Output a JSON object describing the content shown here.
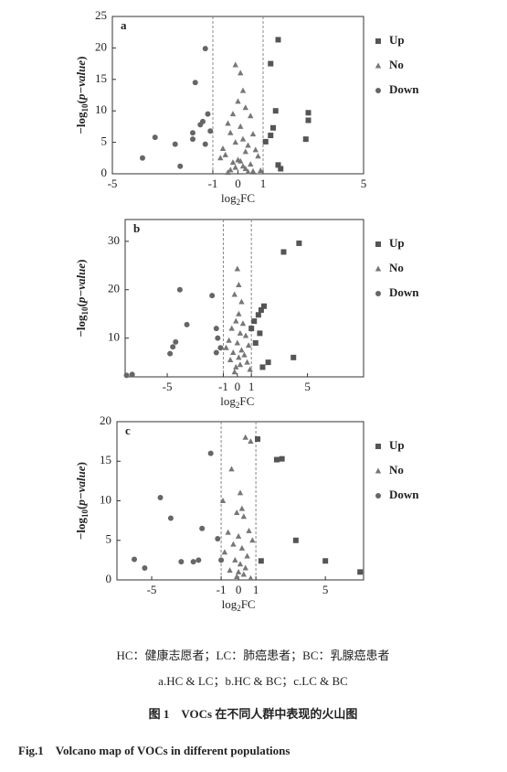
{
  "chart_data": [
    {
      "type": "scatter",
      "panel_label": "a",
      "xlabel": [
        "log",
        "2",
        "FC"
      ],
      "ylabel": [
        "−log",
        "10",
        "(",
        "p−value",
        ")"
      ],
      "xlim": [
        -5,
        5
      ],
      "ylim": [
        0,
        25
      ],
      "xticks": [
        -5,
        -1,
        0,
        1,
        5
      ],
      "yticks": [
        0,
        5,
        10,
        15,
        20,
        25
      ],
      "vlines": [
        -1,
        1
      ],
      "series": [
        {
          "name": "Up",
          "marker": "square",
          "color": "#555555",
          "x": [
            1.6,
            1.3,
            1.5,
            1.4,
            1.3,
            1.1,
            2.8,
            2.8,
            2.7,
            1.6,
            1.7
          ],
          "y": [
            21.3,
            17.5,
            10,
            7.3,
            6.1,
            5.1,
            9.7,
            8.5,
            5.5,
            1.4,
            0.8
          ]
        },
        {
          "name": "No",
          "marker": "triangle",
          "color": "#777777",
          "x": [
            -0.1,
            0.1,
            0.2,
            0,
            0.3,
            -0.2,
            0.5,
            -0.4,
            0.1,
            -0.3,
            0.6,
            0.2,
            -0.1,
            0.4,
            -0.6,
            0.7,
            0.3,
            -0.5,
            0.8,
            -0.7,
            0,
            0.1,
            -0.2,
            0.5,
            0.2,
            -0.1,
            0.3,
            -0.3,
            0.9,
            0.6,
            0.4,
            -0.4
          ],
          "y": [
            17.3,
            16,
            13.2,
            11.5,
            10.5,
            9.5,
            9.2,
            8,
            7.5,
            6.5,
            6.3,
            5.5,
            5,
            4.5,
            4,
            3.8,
            3.5,
            3,
            2.8,
            2.5,
            2.2,
            2,
            1.8,
            1.5,
            1.2,
            1,
            0.8,
            0.6,
            0.5,
            0.4,
            0.3,
            0.2
          ]
        },
        {
          "name": "Down",
          "marker": "circle",
          "color": "#666666",
          "x": [
            -1.3,
            -1.7,
            -1.2,
            -1.4,
            -1.5,
            -1.1,
            -3.3,
            -2.5,
            -3.8,
            -2.3,
            -1.8,
            -1.8,
            -1.3
          ],
          "y": [
            19.9,
            14.5,
            9.5,
            8.3,
            7.8,
            6.8,
            5.8,
            4.7,
            2.5,
            1.2,
            6.5,
            5.5,
            4.7
          ]
        }
      ]
    },
    {
      "type": "scatter",
      "panel_label": "b",
      "xlabel": [
        "log",
        "2",
        "FC"
      ],
      "ylabel": [
        "−log",
        "10",
        "(",
        "p−value",
        ")"
      ],
      "xlim": [
        -8,
        9
      ],
      "ylim": [
        2,
        34.5
      ],
      "xticks": [
        -5,
        -1,
        0,
        1,
        5
      ],
      "yticks": [
        10,
        20,
        30
      ],
      "vlines": [
        -1,
        1
      ],
      "series": [
        {
          "name": "Up",
          "marker": "square",
          "color": "#555555",
          "x": [
            4.4,
            3.3,
            1.9,
            1.7,
            1.5,
            1.2,
            1.0,
            1.6,
            1.3,
            2.2,
            4,
            1.8
          ],
          "y": [
            29.6,
            27.8,
            16.6,
            15.8,
            14.8,
            13.5,
            12,
            11,
            9,
            5,
            6,
            4
          ]
        },
        {
          "name": "No",
          "marker": "triangle",
          "color": "#777777",
          "x": [
            0,
            0.1,
            -0.2,
            0.3,
            0.1,
            -0.1,
            0.4,
            -0.4,
            0.2,
            0.6,
            -0.6,
            0,
            0.8,
            -0.8,
            0.3,
            -0.3,
            0.5,
            0.1,
            -0.5,
            0.7,
            0.2,
            -0.1,
            0.9,
            -0.2
          ],
          "y": [
            24.3,
            21,
            19,
            17.5,
            15,
            13.5,
            13,
            12,
            11,
            10.5,
            9.5,
            9,
            8.5,
            8,
            7.5,
            7,
            6.5,
            6,
            5.5,
            5,
            4.5,
            4,
            3.5,
            3
          ]
        },
        {
          "name": "Down",
          "marker": "circle",
          "color": "#666666",
          "x": [
            -4.1,
            -1.8,
            -3.6,
            -4.4,
            -4.6,
            -4.8,
            -1.5,
            -1.4,
            -1.2,
            -1.5,
            -7.5,
            -7.9
          ],
          "y": [
            20,
            18.8,
            12.8,
            9.2,
            8.2,
            6.8,
            12,
            10,
            8,
            7,
            2.5,
            2.3
          ]
        }
      ]
    },
    {
      "type": "scatter",
      "panel_label": "c",
      "xlabel": [
        "log",
        "2",
        "FC"
      ],
      "ylabel": [
        "−log",
        "10",
        "(",
        "p−value",
        ")"
      ],
      "xlim": [
        -7,
        7.2
      ],
      "ylim": [
        0,
        20
      ],
      "xticks": [
        -5,
        -1,
        0,
        1,
        5
      ],
      "yticks": [
        0,
        5,
        10,
        15,
        20
      ],
      "vlines": [
        -1,
        1
      ],
      "series": [
        {
          "name": "Up",
          "marker": "square",
          "color": "#555555",
          "x": [
            1.1,
            2.2,
            2.5,
            3.3,
            5.0,
            7.0,
            1.3
          ],
          "y": [
            17.8,
            15.2,
            15.3,
            5,
            2.4,
            1.0,
            2.4
          ]
        },
        {
          "name": "No",
          "marker": "triangle",
          "color": "#777777",
          "x": [
            0.4,
            0.7,
            -0.4,
            0.1,
            -0.9,
            0.2,
            -0.1,
            0.3,
            0.6,
            -0.6,
            0,
            0.8,
            -0.3,
            0.2,
            -0.8,
            0.5,
            -0.2,
            0.1,
            0.4,
            -0.5,
            0,
            0.3,
            -0.1,
            0.7
          ],
          "y": [
            18,
            17.5,
            14,
            11,
            10,
            9,
            8.5,
            8,
            6.2,
            6,
            5.5,
            5,
            4.5,
            4,
            3.5,
            3,
            2.5,
            2,
            1.5,
            1.2,
            1,
            0.7,
            0.4,
            0.2
          ]
        },
        {
          "name": "Down",
          "marker": "circle",
          "color": "#666666",
          "x": [
            -1.6,
            -4.5,
            -3.9,
            -2.1,
            -6,
            -5.4,
            -3.3,
            -2.6,
            -2.3,
            -1.2,
            -1.0
          ],
          "y": [
            16,
            10.4,
            7.8,
            6.5,
            2.6,
            1.5,
            2.3,
            2.3,
            2.5,
            5.2,
            2.5
          ]
        }
      ]
    }
  ],
  "caption": [
    "HC：健康志愿者；LC：肺癌患者；BC：乳腺癌患者",
    "a.HC & LC；b.HC & BC；c.LC & BC",
    "图 1　VOCs 在不同人群中表现的火山图",
    "Fig.1　Volcano map of VOCs in different populations"
  ]
}
